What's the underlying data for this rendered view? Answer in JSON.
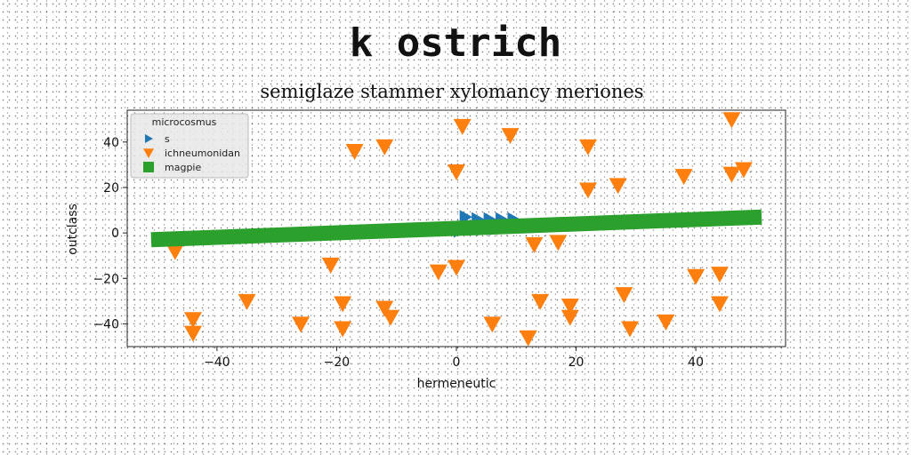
{
  "title": "k ostrich",
  "chart_data": {
    "type": "scatter",
    "subtitle": "semiglaze stammer xylomancy meriones",
    "xlabel": "hermeneutic",
    "ylabel": "outclass",
    "xlim": [
      -55,
      55
    ],
    "ylim": [
      -50,
      54
    ],
    "xticks": [
      -40,
      -20,
      0,
      20,
      40
    ],
    "yticks": [
      -40,
      -20,
      0,
      20,
      40
    ],
    "legend": {
      "title": "microcosmus",
      "placement": "top-left"
    },
    "series": [
      {
        "name": "s",
        "marker": "triangle-right",
        "color": "#1f77b4",
        "x": [
          0.5,
          1.5,
          2.5,
          3.5,
          4.5,
          5.5,
          6.5,
          7.5,
          8.5,
          9.5
        ],
        "y": [
          1,
          7,
          3,
          6,
          2,
          6,
          2,
          6,
          3,
          6
        ]
      },
      {
        "name": "ichneumonidan",
        "marker": "triangle-down",
        "color": "#ff7f0e",
        "x": [
          -47,
          -44,
          -44,
          -35,
          -26,
          -21,
          -19,
          -19,
          -17,
          -12,
          -12,
          -11,
          -3,
          0,
          0,
          1,
          6,
          9,
          12,
          13,
          14,
          17,
          19,
          19,
          22,
          22,
          27,
          28,
          29,
          35,
          38,
          40,
          44,
          44,
          46,
          46,
          48
        ],
        "y": [
          -8,
          -38,
          -44,
          -30,
          -40,
          -14,
          -31,
          -42,
          36,
          38,
          -33,
          -37,
          -17,
          -15,
          27,
          47,
          -40,
          43,
          -46,
          -5,
          -30,
          -4,
          -32,
          -37,
          38,
          19,
          21,
          -27,
          -42,
          -39,
          25,
          -19,
          -31,
          -18,
          26,
          50,
          28
        ]
      },
      {
        "name": "magpie",
        "marker": "square",
        "color": "#2ca02c",
        "x": [
          -51,
          51
        ],
        "y": [
          -3,
          7
        ]
      }
    ]
  }
}
